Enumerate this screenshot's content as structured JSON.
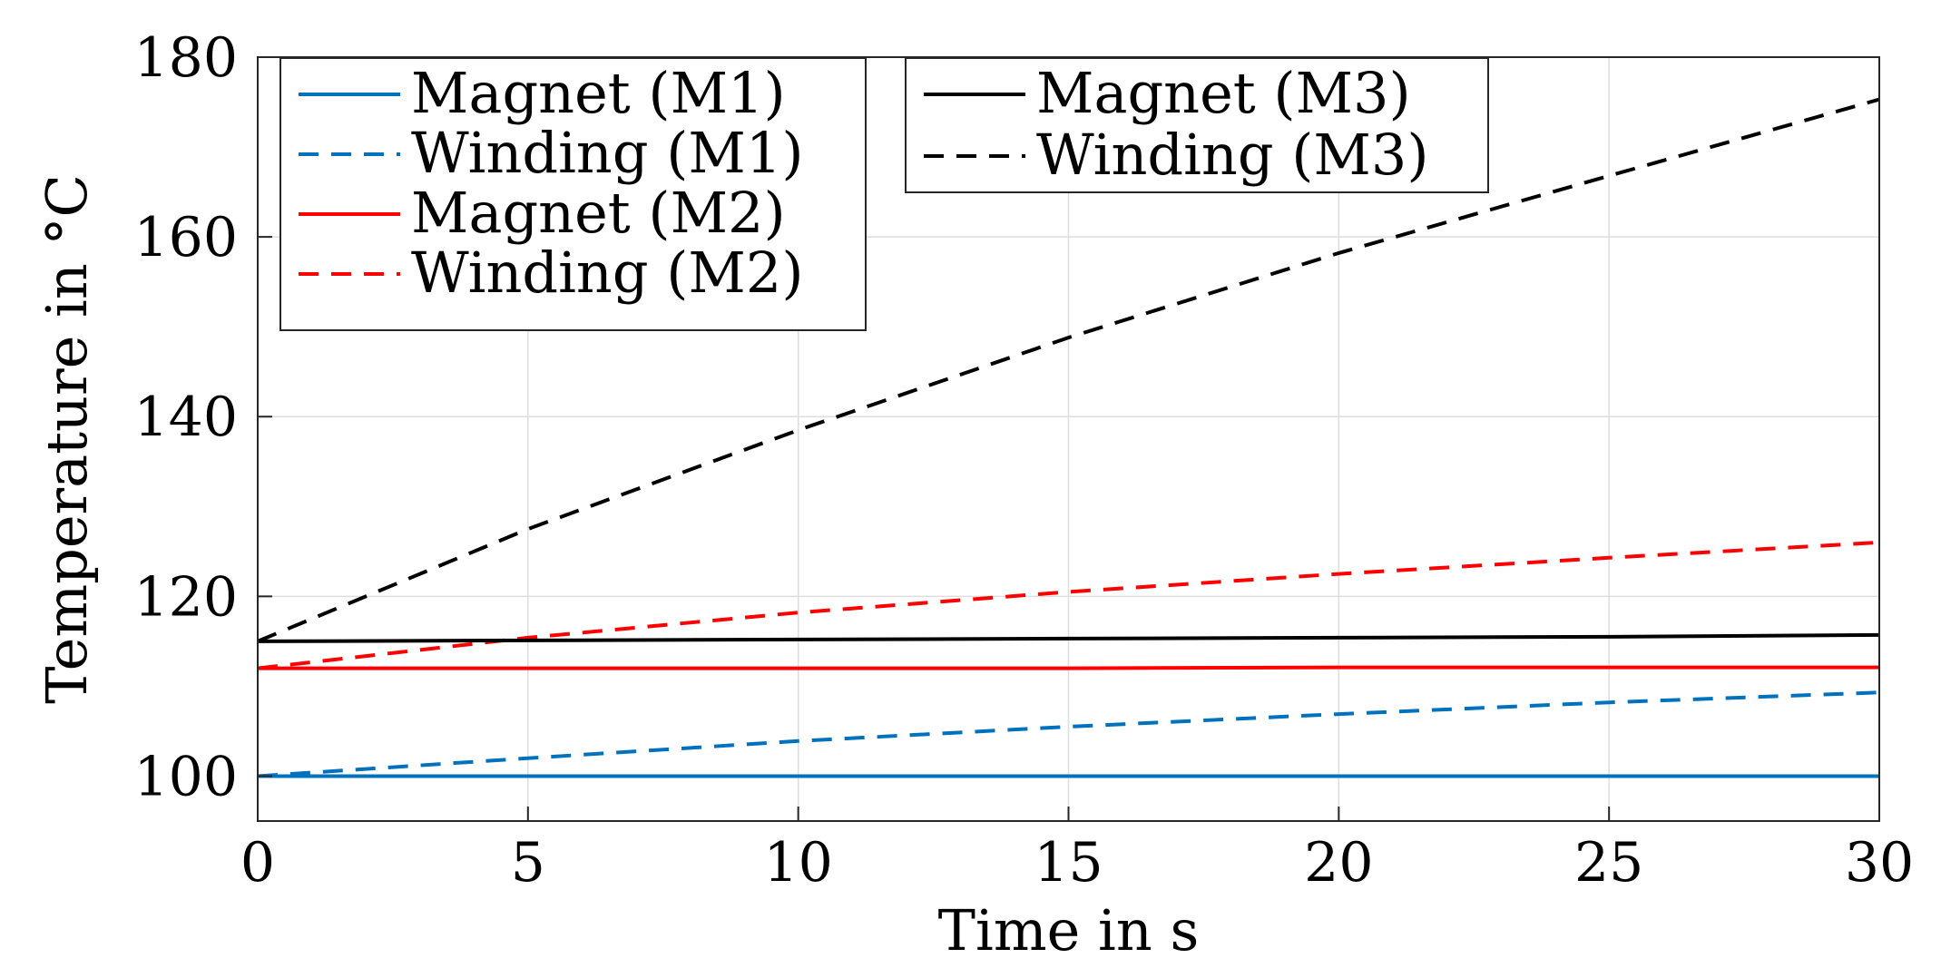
{
  "chart_data": {
    "type": "line",
    "title": "",
    "xlabel": "Time in s",
    "ylabel": "Temperature in °C",
    "xlim": [
      0,
      30
    ],
    "ylim": [
      95,
      180
    ],
    "xticks": [
      0,
      5,
      10,
      15,
      20,
      25,
      30
    ],
    "yticks": [
      100,
      120,
      140,
      160,
      180
    ],
    "grid": true,
    "legend_position": "top-left",
    "x": [
      0,
      5,
      10,
      15,
      20,
      25,
      30
    ],
    "series": [
      {
        "name": "Magnet (M1)",
        "color": "#0072BD",
        "dash": "solid",
        "values": [
          100,
          100,
          100,
          100,
          100,
          100,
          100
        ]
      },
      {
        "name": "Winding (M1)",
        "color": "#0072BD",
        "dash": "dashed",
        "values": [
          100,
          102.0,
          103.9,
          105.5,
          106.9,
          108.2,
          109.3
        ]
      },
      {
        "name": "Magnet (M2)",
        "color": "#FF0000",
        "dash": "solid",
        "values": [
          112,
          112,
          112,
          112,
          112.1,
          112.1,
          112.1
        ]
      },
      {
        "name": "Winding (M2)",
        "color": "#FF0000",
        "dash": "dashed",
        "values": [
          112,
          115.4,
          118.2,
          120.5,
          122.5,
          124.3,
          126
        ]
      },
      {
        "name": "Magnet (M3)",
        "color": "#000000",
        "dash": "solid",
        "values": [
          115,
          115.1,
          115.2,
          115.3,
          115.4,
          115.5,
          115.7
        ]
      },
      {
        "name": "Winding (M3)",
        "color": "#000000",
        "dash": "dashed",
        "values": [
          115,
          127.5,
          138.5,
          148.8,
          158.2,
          166.8,
          175.3
        ]
      }
    ],
    "legends": [
      {
        "entries": [
          0,
          1,
          2,
          3
        ]
      },
      {
        "entries": [
          4,
          5
        ]
      }
    ]
  }
}
